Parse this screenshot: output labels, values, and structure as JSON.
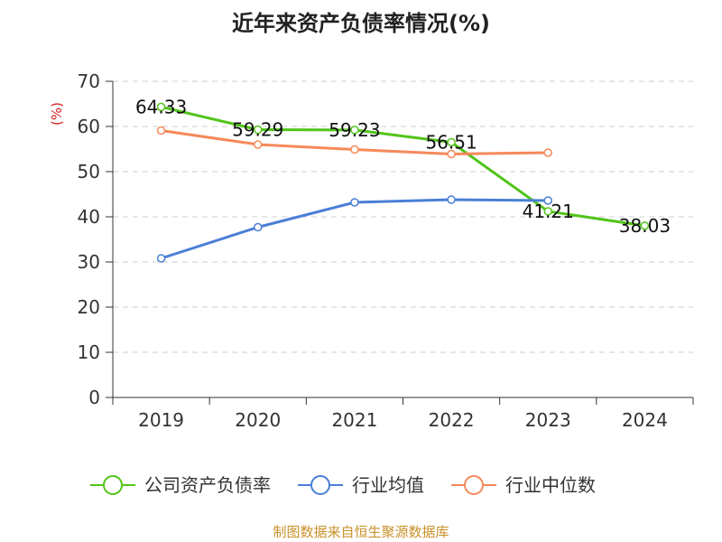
{
  "chart_data": {
    "type": "line",
    "title": "近年来资产负债率情况(%)",
    "ylabel": "(%)",
    "categories": [
      "2019",
      "2020",
      "2021",
      "2022",
      "2023",
      "2024"
    ],
    "ylim": [
      0,
      70
    ],
    "yticks": [
      0,
      10,
      20,
      30,
      40,
      50,
      60,
      70
    ],
    "grid": true,
    "legend_position": "bottom",
    "series": [
      {
        "name": "公司资产负债率",
        "color": "#52c41a",
        "values": [
          64.33,
          59.29,
          59.23,
          56.51,
          41.21,
          38.03
        ],
        "labels": [
          "64.33",
          "59.29",
          "59.23",
          "56.51",
          "41.21",
          "38.03"
        ]
      },
      {
        "name": "行业均值",
        "color": "#4a7fd6",
        "values": [
          30.8,
          37.7,
          43.2,
          43.8,
          43.6,
          null
        ]
      },
      {
        "name": "行业中位数",
        "color": "#f5895a",
        "values": [
          59.1,
          56.0,
          54.9,
          53.9,
          54.2,
          null
        ]
      }
    ]
  },
  "source": "制图数据来自恒生聚源数据库"
}
